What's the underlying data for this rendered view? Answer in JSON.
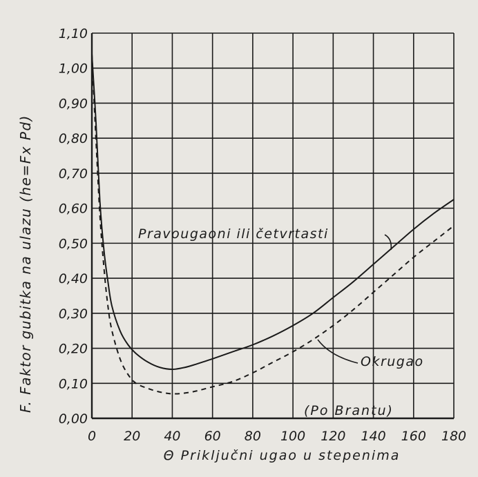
{
  "chart_data": {
    "type": "line",
    "title": "",
    "xlabel": "Θ Priključni ugao u stepenima",
    "ylabel": "F. Faktor gubitka na ulazu (he=Fx Pd)",
    "xlim": [
      0,
      180
    ],
    "ylim": [
      0.0,
      1.1
    ],
    "x_ticks": [
      "0",
      "20",
      "40",
      "60",
      "80",
      "100",
      "120",
      "140",
      "160",
      "180"
    ],
    "y_ticks": [
      "0,00",
      "0,10",
      "0,20",
      "0,30",
      "0,40",
      "0,50",
      "0,60",
      "0,70",
      "0,80",
      "0,90",
      "1,00",
      "1,10"
    ],
    "grid": true,
    "series": [
      {
        "name": "Pravougaoni ili četvrtasti",
        "style": "solid",
        "color": "#1a1a1a",
        "points": [
          [
            0,
            1.04
          ],
          [
            2,
            0.85
          ],
          [
            4,
            0.62
          ],
          [
            6,
            0.48
          ],
          [
            8,
            0.39
          ],
          [
            10,
            0.32
          ],
          [
            14,
            0.25
          ],
          [
            18,
            0.21
          ],
          [
            22,
            0.185
          ],
          [
            28,
            0.16
          ],
          [
            34,
            0.145
          ],
          [
            40,
            0.14
          ],
          [
            46,
            0.145
          ],
          [
            52,
            0.155
          ],
          [
            60,
            0.17
          ],
          [
            70,
            0.19
          ],
          [
            80,
            0.21
          ],
          [
            90,
            0.235
          ],
          [
            100,
            0.265
          ],
          [
            110,
            0.3
          ],
          [
            120,
            0.345
          ],
          [
            130,
            0.39
          ],
          [
            140,
            0.44
          ],
          [
            150,
            0.49
          ],
          [
            160,
            0.54
          ],
          [
            170,
            0.585
          ],
          [
            180,
            0.625
          ]
        ]
      },
      {
        "name": "Okrugao",
        "style": "dashed",
        "color": "#1a1a1a",
        "points": [
          [
            0,
            1.04
          ],
          [
            2,
            0.8
          ],
          [
            4,
            0.58
          ],
          [
            6,
            0.43
          ],
          [
            8,
            0.32
          ],
          [
            10,
            0.25
          ],
          [
            14,
            0.17
          ],
          [
            18,
            0.125
          ],
          [
            22,
            0.1
          ],
          [
            28,
            0.085
          ],
          [
            34,
            0.075
          ],
          [
            40,
            0.07
          ],
          [
            46,
            0.072
          ],
          [
            52,
            0.078
          ],
          [
            60,
            0.09
          ],
          [
            70,
            0.105
          ],
          [
            80,
            0.13
          ],
          [
            90,
            0.16
          ],
          [
            100,
            0.19
          ],
          [
            110,
            0.225
          ],
          [
            120,
            0.265
          ],
          [
            130,
            0.31
          ],
          [
            140,
            0.36
          ],
          [
            150,
            0.41
          ],
          [
            160,
            0.46
          ],
          [
            170,
            0.505
          ],
          [
            180,
            0.55
          ]
        ]
      }
    ],
    "annotations": {
      "curve_label_rect": "Pravougaoni ili četvrtasti",
      "curve_label_round": "Okrugao",
      "source_note": "(Po Brantu)"
    }
  }
}
